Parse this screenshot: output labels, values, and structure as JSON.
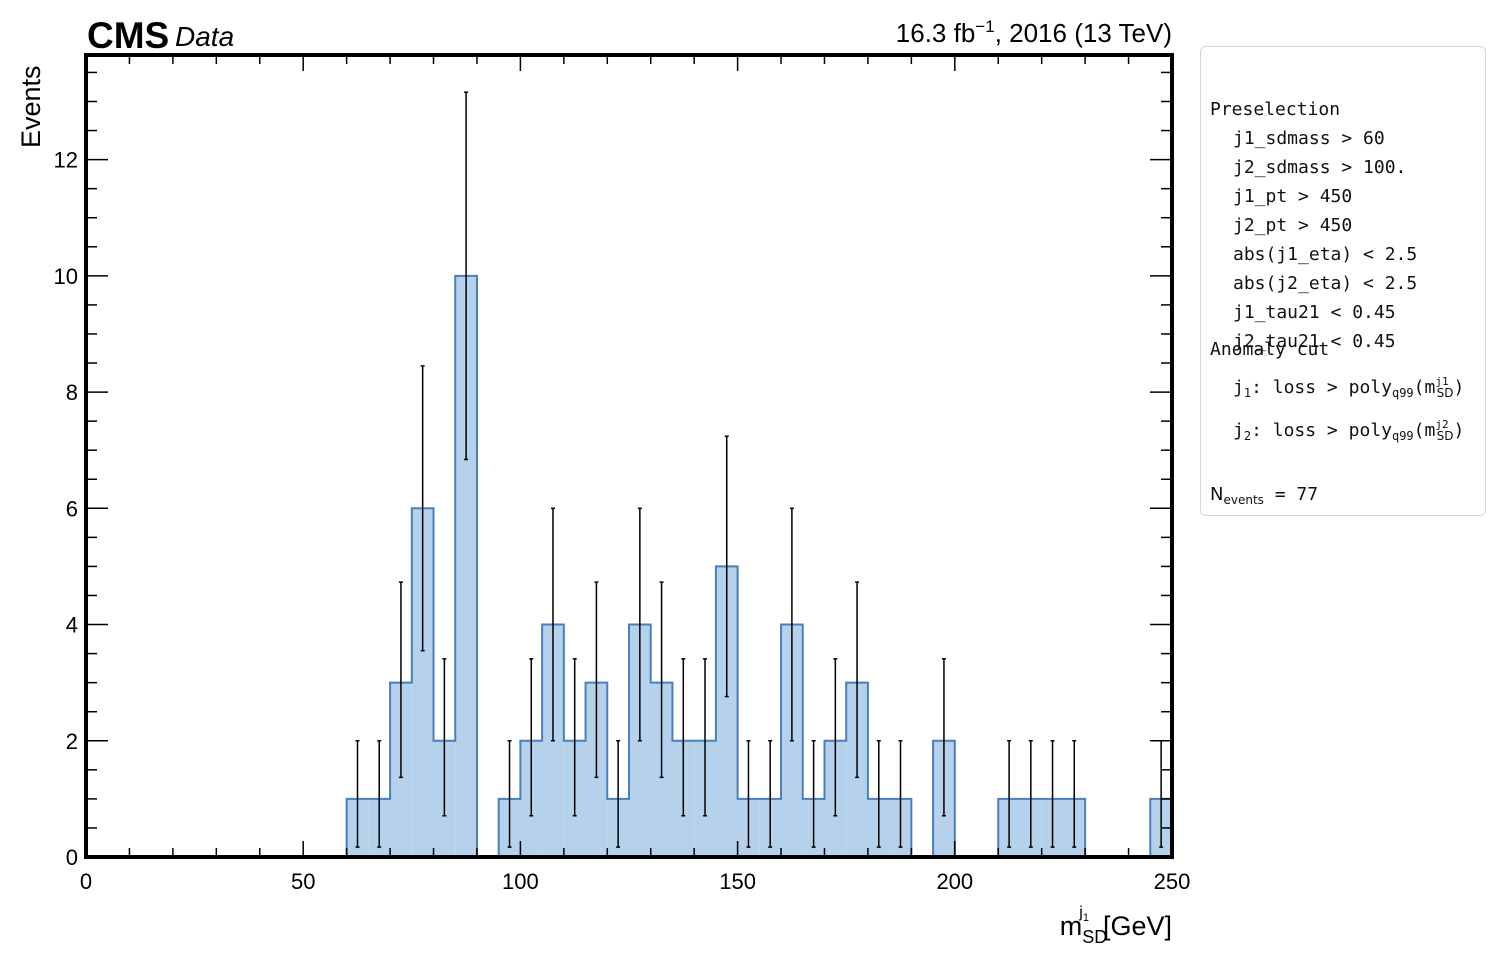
{
  "chart_data": {
    "type": "bar",
    "experiment": "CMS",
    "experiment_label": "Data",
    "lumi": "16.3 fb",
    "lumi_exponent": "−1",
    "lumi_rest": ", 2016 (13 TeV)",
    "ylabel": "Events",
    "xlabel_main": "m",
    "xlabel_sub": "SD",
    "xlabel_sup": "j",
    "xlabel_sup_sub": "1",
    "xlabel_unit": "[GeV]",
    "xlim": [
      0,
      250
    ],
    "ylim": [
      0,
      13.8
    ],
    "x_ticks": [
      0,
      50,
      100,
      150,
      200,
      250
    ],
    "y_ticks": [
      0,
      2,
      4,
      6,
      8,
      10,
      12
    ],
    "bin_width": 5,
    "bin_edges_start": 0,
    "values": [
      0,
      0,
      0,
      0,
      0,
      0,
      0,
      0,
      0,
      0,
      0,
      0,
      1,
      1,
      3,
      6,
      2,
      10,
      0,
      1,
      2,
      4,
      2,
      3,
      1,
      4,
      3,
      2,
      2,
      5,
      1,
      1,
      4,
      1,
      2,
      3,
      1,
      1,
      0,
      2,
      0,
      0,
      1,
      1,
      1,
      1,
      0,
      0,
      0,
      1
    ],
    "error_low": [
      0,
      0,
      0,
      0,
      0,
      0,
      0,
      0,
      0,
      0,
      0,
      0,
      0.83,
      0.83,
      1.63,
      2.45,
      1.29,
      3.16,
      0,
      0.83,
      1.29,
      2.0,
      1.29,
      1.63,
      0.83,
      2.0,
      1.63,
      1.29,
      1.29,
      2.24,
      0.83,
      0.83,
      2.0,
      0.83,
      1.29,
      1.63,
      0.83,
      0.83,
      0,
      1.29,
      0,
      0,
      0.83,
      0.83,
      0.83,
      0.83,
      0,
      0,
      0,
      0.83
    ],
    "error_high": [
      0,
      0,
      0,
      0,
      0,
      0,
      0,
      0,
      0,
      0,
      0,
      0,
      1.0,
      1.0,
      1.73,
      2.45,
      1.41,
      3.16,
      0,
      1.0,
      1.41,
      2.0,
      1.41,
      1.73,
      1.0,
      2.0,
      1.73,
      1.41,
      1.41,
      2.24,
      1.0,
      1.0,
      2.0,
      1.0,
      1.41,
      1.73,
      1.0,
      1.0,
      0,
      1.41,
      0,
      0,
      1.0,
      1.0,
      1.0,
      1.0,
      0,
      0,
      0,
      1.0
    ],
    "fill_color": "#b6d1ec",
    "edge_color": "#4a7fb8",
    "legend": {
      "preselection_title": "Preselection",
      "preselection_cuts": [
        "j1_sdmass > 60",
        "j2_sdmass > 100.",
        "j1_pt > 450",
        "j2_pt > 450",
        "abs(j1_eta) < 2.5",
        "abs(j2_eta) < 2.5",
        "j1_tau21 < 0.45",
        "j2_tau21 < 0.45"
      ],
      "anomaly_title": "Anomaly cut",
      "anomaly_cuts": [
        {
          "jet_sub": "1",
          "text": ": loss > poly",
          "poly_sub": "q99",
          "mass_sup": "j",
          "mass_sup_sub": "1"
        },
        {
          "jet_sub": "2",
          "text": ": loss > poly",
          "poly_sub": "q99",
          "mass_sup": "j",
          "mass_sup_sub": "2"
        }
      ],
      "nevents_label": "N",
      "nevents_sub": "events",
      "nevents_value": " = 77"
    }
  }
}
